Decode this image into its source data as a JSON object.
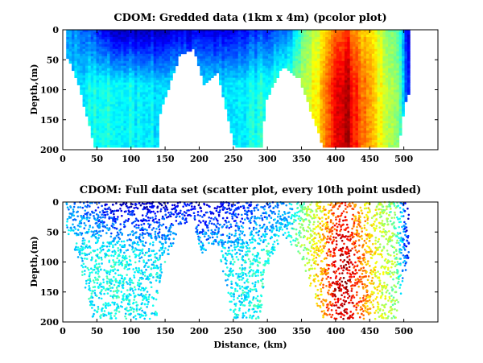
{
  "chart_data": [
    {
      "type": "heatmap",
      "title": "CDOM: Gredded data (1km x 4m) (pcolor plot)",
      "xlabel": "",
      "ylabel": "Depth,(m)",
      "xlim": [
        0,
        550
      ],
      "ylim": [
        200,
        0
      ],
      "y_reversed": true,
      "x_ticks": [
        0,
        50,
        100,
        150,
        200,
        250,
        300,
        350,
        400,
        450,
        500
      ],
      "y_ticks": [
        0,
        50,
        100,
        150,
        200
      ],
      "colormap": "jet",
      "grid": false,
      "data_extent_km": [
        5,
        508
      ],
      "coverage_profile": [
        {
          "x": 5,
          "bottom": 45
        },
        {
          "x": 20,
          "bottom": 85
        },
        {
          "x": 45,
          "bottom": 195
        },
        {
          "x": 137,
          "bottom": 195
        },
        {
          "x": 140,
          "bottom": 140
        },
        {
          "x": 170,
          "bottom": 40
        },
        {
          "x": 190,
          "bottom": 30
        },
        {
          "x": 205,
          "bottom": 90
        },
        {
          "x": 225,
          "bottom": 70
        },
        {
          "x": 250,
          "bottom": 195
        },
        {
          "x": 290,
          "bottom": 195
        },
        {
          "x": 295,
          "bottom": 120
        },
        {
          "x": 320,
          "bottom": 60
        },
        {
          "x": 345,
          "bottom": 80
        },
        {
          "x": 380,
          "bottom": 195
        },
        {
          "x": 490,
          "bottom": 195
        },
        {
          "x": 500,
          "bottom": 120
        },
        {
          "x": 508,
          "bottom": 100
        }
      ],
      "value_profile": [
        {
          "x": 0,
          "surface": 0.3,
          "deep": 0.32
        },
        {
          "x": 40,
          "surface": 0.2,
          "deep": 0.38
        },
        {
          "x": 70,
          "surface": 0.08,
          "deep": 0.4
        },
        {
          "x": 120,
          "surface": 0.06,
          "deep": 0.36
        },
        {
          "x": 160,
          "surface": 0.1,
          "deep": 0.36
        },
        {
          "x": 200,
          "surface": 0.1,
          "deep": 0.34
        },
        {
          "x": 240,
          "surface": 0.1,
          "deep": 0.35
        },
        {
          "x": 290,
          "surface": 0.18,
          "deep": 0.4
        },
        {
          "x": 330,
          "surface": 0.25,
          "deep": 0.45
        },
        {
          "x": 355,
          "surface": 0.5,
          "deep": 0.55
        },
        {
          "x": 380,
          "surface": 0.62,
          "deep": 0.7
        },
        {
          "x": 400,
          "surface": 0.78,
          "deep": 0.9
        },
        {
          "x": 415,
          "surface": 0.82,
          "deep": 0.95
        },
        {
          "x": 430,
          "surface": 0.72,
          "deep": 0.82
        },
        {
          "x": 460,
          "surface": 0.58,
          "deep": 0.62
        },
        {
          "x": 490,
          "surface": 0.45,
          "deep": 0.5
        },
        {
          "x": 505,
          "surface": 0.1,
          "deep": 0.15
        }
      ]
    },
    {
      "type": "scatter",
      "title": "CDOM: Full data set (scatter plot, every 10th point usded)",
      "xlabel": "Distance, (km)",
      "ylabel": "Depth,(m)",
      "xlim": [
        0,
        550
      ],
      "ylim": [
        200,
        0
      ],
      "y_reversed": true,
      "x_ticks": [
        0,
        50,
        100,
        150,
        200,
        250,
        300,
        350,
        400,
        450,
        500
      ],
      "y_ticks": [
        0,
        50,
        100,
        150,
        200
      ],
      "colormap": "jet",
      "grid": false,
      "sampling": "every 10th point"
    }
  ]
}
